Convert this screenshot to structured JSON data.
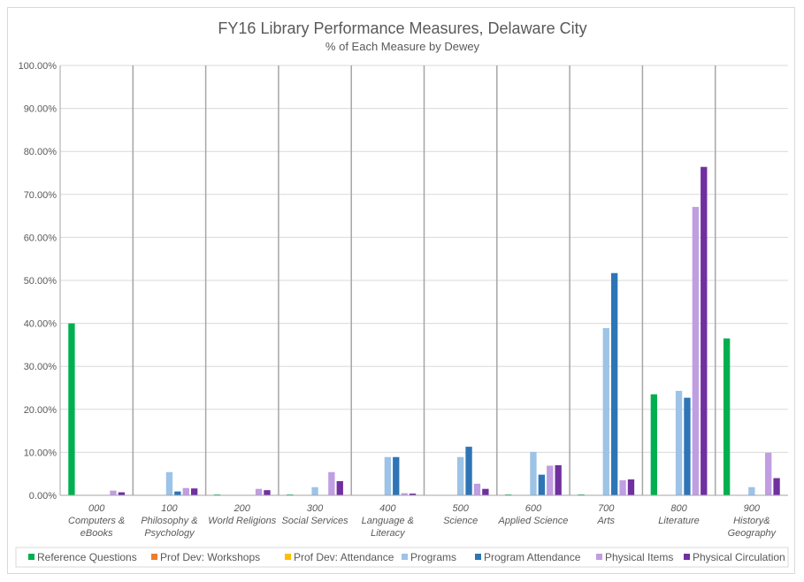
{
  "chart_data": {
    "type": "bar",
    "title": "FY16 Library Performance Measures, Delaware City",
    "subtitle": "% of Each Measure by Dewey",
    "xlabel": "",
    "ylabel": "",
    "ylim": [
      0,
      100
    ],
    "ytick_labels": [
      "0.00%",
      "10.00%",
      "20.00%",
      "30.00%",
      "40.00%",
      "50.00%",
      "60.00%",
      "70.00%",
      "80.00%",
      "90.00%",
      "100.00%"
    ],
    "legend_position": "bottom",
    "grid": true,
    "categories": [
      [
        "000",
        "Computers &",
        "eBooks"
      ],
      [
        "100",
        "Philosophy &",
        "Psychology"
      ],
      [
        "200",
        "World Religions"
      ],
      [
        "300",
        "Social Services"
      ],
      [
        "400",
        "Language &",
        "Literacy"
      ],
      [
        "500",
        "Science"
      ],
      [
        "600",
        "Applied Science"
      ],
      [
        "700",
        "Arts"
      ],
      [
        "800",
        "Literature"
      ],
      [
        "900",
        "History&",
        "Geography"
      ]
    ],
    "series": [
      {
        "name": "Reference Questions",
        "color": "#00b050",
        "values": [
          40.0,
          0,
          0.2,
          0.2,
          0,
          0,
          0.2,
          0.2,
          23.5,
          36.5
        ]
      },
      {
        "name": "Prof Dev: Workshops",
        "color": "#ed7d31",
        "values": [
          0,
          0,
          0,
          0,
          0,
          0,
          0,
          0,
          0,
          0
        ]
      },
      {
        "name": "Prof Dev: Attendance",
        "color": "#ffc000",
        "values": [
          0,
          0,
          0,
          0,
          0,
          0,
          0,
          0,
          0,
          0
        ]
      },
      {
        "name": "Programs",
        "color": "#9dc3e6",
        "values": [
          0,
          5.4,
          0,
          1.9,
          8.9,
          8.9,
          10.1,
          38.9,
          24.3,
          1.9
        ]
      },
      {
        "name": "Program Attendance",
        "color": "#2e75b6",
        "values": [
          0,
          0.9,
          0,
          0,
          8.9,
          11.3,
          4.8,
          51.7,
          22.7,
          0
        ]
      },
      {
        "name": "Physical Items",
        "color": "#c09ee2",
        "values": [
          1.1,
          1.7,
          1.5,
          5.4,
          0.5,
          2.7,
          6.9,
          3.5,
          67.1,
          9.9
        ]
      },
      {
        "name": "Physical Circulation",
        "color": "#7030a0",
        "values": [
          0.7,
          1.6,
          1.2,
          3.3,
          0.4,
          1.5,
          7.0,
          3.7,
          76.4,
          4.0
        ]
      }
    ]
  }
}
